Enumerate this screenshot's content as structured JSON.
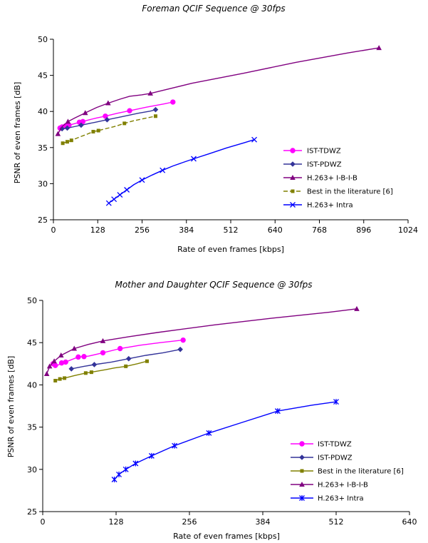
{
  "chart_data": [
    {
      "type": "line",
      "title": "Foreman QCIF Sequence @ 30fps",
      "xlabel": "Rate of even frames [kbps]",
      "ylabel": "PSNR of even frames [dB]",
      "xlim": [
        0,
        1024
      ],
      "ylim": [
        25,
        50
      ],
      "xticks": [
        0,
        128,
        256,
        384,
        512,
        640,
        768,
        896,
        1024
      ],
      "yticks": [
        25,
        30,
        35,
        40,
        45,
        50
      ],
      "grid": false,
      "legend_position": "right",
      "legend_order": [
        "IST-TDWZ",
        "IST-PDWZ",
        "H.263+ I-B-I-B",
        "Best in the literature [6]",
        "H.263+ Intra"
      ],
      "series": [
        {
          "name": "IST-TDWZ",
          "color": "#ff00ff",
          "marker": "circle",
          "dash": "none",
          "x": [
            19,
            25,
            35,
            45,
            60,
            75,
            85,
            100,
            125,
            150,
            185,
            220,
            270,
            320,
            345
          ],
          "y": [
            37.7,
            37.85,
            38.0,
            38.1,
            38.3,
            38.5,
            38.6,
            38.8,
            39.1,
            39.35,
            39.75,
            40.1,
            40.6,
            41.05,
            41.3
          ],
          "marked": [
            0,
            1,
            2,
            3,
            5,
            6,
            9,
            11,
            14
          ]
        },
        {
          "name": "IST-PDWZ",
          "color": "#333399",
          "marker": "diamond",
          "dash": "none",
          "x": [
            25,
            40,
            60,
            80,
            90,
            120,
            155,
            200,
            245,
            280,
            295
          ],
          "y": [
            37.6,
            37.7,
            37.9,
            38.1,
            38.2,
            38.5,
            38.85,
            39.3,
            39.75,
            40.05,
            40.25
          ],
          "marked": [
            0,
            1,
            3,
            6,
            10
          ]
        },
        {
          "name": "H.263+ I-B-I-B",
          "color": "#800080",
          "marker": "triangle",
          "dash": "none",
          "x": [
            13,
            25,
            42,
            62,
            92,
            125,
            158,
            192,
            220,
            255,
            280,
            400,
            550,
            700,
            850,
            940
          ],
          "y": [
            36.9,
            37.9,
            38.6,
            39.1,
            39.8,
            40.55,
            41.15,
            41.7,
            42.1,
            42.3,
            42.5,
            43.9,
            45.3,
            46.8,
            48.1,
            48.8
          ],
          "marked": [
            0,
            2,
            4,
            6,
            10,
            15
          ]
        },
        {
          "name": "Best in the literature [6]",
          "color": "#808000",
          "marker": "square",
          "dash": "dashed",
          "x": [
            27,
            40,
            52,
            78,
            92,
            115,
            130,
            150,
            180,
            205,
            230,
            260,
            295
          ],
          "y": [
            35.6,
            35.8,
            36.0,
            36.5,
            36.75,
            37.2,
            37.35,
            37.6,
            37.95,
            38.35,
            38.7,
            39.0,
            39.35
          ],
          "marked": [
            0,
            1,
            2,
            5,
            6,
            9,
            12
          ]
        },
        {
          "name": "H.263+ Intra",
          "color": "#0000ff",
          "marker": "x",
          "dash": "none",
          "x": [
            160,
            175,
            192,
            212,
            232,
            256,
            285,
            315,
            345,
            375,
            405,
            450,
            500,
            550,
            580
          ],
          "y": [
            27.3,
            27.85,
            28.45,
            29.15,
            29.85,
            30.5,
            31.2,
            31.85,
            32.45,
            32.95,
            33.45,
            34.15,
            34.95,
            35.65,
            36.1
          ],
          "marked": [
            0,
            1,
            2,
            3,
            5,
            7,
            10,
            14
          ]
        }
      ]
    },
    {
      "type": "line",
      "title": "Mother and Daughter QCIF Sequence @ 30fps",
      "xlabel": "Rate of even frames [kbps]",
      "ylabel": "PSNR of even frames [dB]",
      "xlim": [
        0,
        640
      ],
      "ylim": [
        25,
        50
      ],
      "xticks": [
        0,
        128,
        256,
        384,
        512,
        640
      ],
      "yticks": [
        25,
        30,
        35,
        40,
        45,
        50
      ],
      "grid": false,
      "legend_position": "bottom-right",
      "legend_order": [
        "IST-TDWZ",
        "IST-PDWZ",
        "Best in the literature [6]",
        "H.263+ I-B-I-B",
        "H.263+ Intra"
      ],
      "series": [
        {
          "name": "IST-TDWZ",
          "color": "#ff00ff",
          "marker": "circle",
          "dash": "none",
          "x": [
            18,
            22,
            27,
            33,
            40,
            45,
            62,
            72,
            80,
            105,
            135,
            170,
            205,
            245
          ],
          "y": [
            42.5,
            42.3,
            42.35,
            42.6,
            42.7,
            42.85,
            43.3,
            43.35,
            43.4,
            43.8,
            44.3,
            44.7,
            45.0,
            45.3
          ],
          "marked": [
            0,
            1,
            3,
            4,
            6,
            7,
            9,
            10,
            13
          ]
        },
        {
          "name": "IST-PDWZ",
          "color": "#333399",
          "marker": "diamond",
          "dash": "none",
          "x": [
            50,
            72,
            90,
            120,
            150,
            180,
            210,
            240
          ],
          "y": [
            41.9,
            42.2,
            42.4,
            42.7,
            43.1,
            43.5,
            43.8,
            44.2
          ],
          "marked": [
            0,
            2,
            4,
            7
          ]
        },
        {
          "name": "Best in the literature [6]",
          "color": "#808000",
          "marker": "square",
          "dash": "none",
          "x": [
            22,
            30,
            38,
            55,
            75,
            85,
            110,
            125,
            145,
            165,
            182
          ],
          "y": [
            40.5,
            40.7,
            40.8,
            41.1,
            41.4,
            41.5,
            41.8,
            42.0,
            42.2,
            42.5,
            42.8
          ],
          "marked": [
            0,
            1,
            2,
            4,
            5,
            8,
            10
          ]
        },
        {
          "name": "H.263+ I-B-I-B",
          "color": "#800080",
          "marker": "triangle",
          "dash": "none",
          "x": [
            7,
            12,
            20,
            32,
            55,
            80,
            105,
            150,
            200,
            300,
            400,
            500,
            548
          ],
          "y": [
            41.3,
            42.2,
            42.8,
            43.5,
            44.3,
            44.8,
            45.2,
            45.7,
            46.2,
            47.1,
            47.9,
            48.6,
            49.0
          ],
          "marked": [
            0,
            1,
            2,
            3,
            4,
            6,
            12
          ]
        },
        {
          "name": "H.263+ Intra",
          "color": "#0000ff",
          "marker": "star",
          "dash": "none",
          "x": [
            125,
            133,
            145,
            162,
            190,
            230,
            290,
            350,
            410,
            470,
            512
          ],
          "y": [
            28.8,
            29.4,
            30.0,
            30.7,
            31.6,
            32.8,
            34.3,
            35.6,
            36.9,
            37.6,
            38.0
          ],
          "marked": [
            0,
            1,
            2,
            3,
            4,
            5,
            6,
            8,
            10
          ]
        }
      ]
    }
  ]
}
